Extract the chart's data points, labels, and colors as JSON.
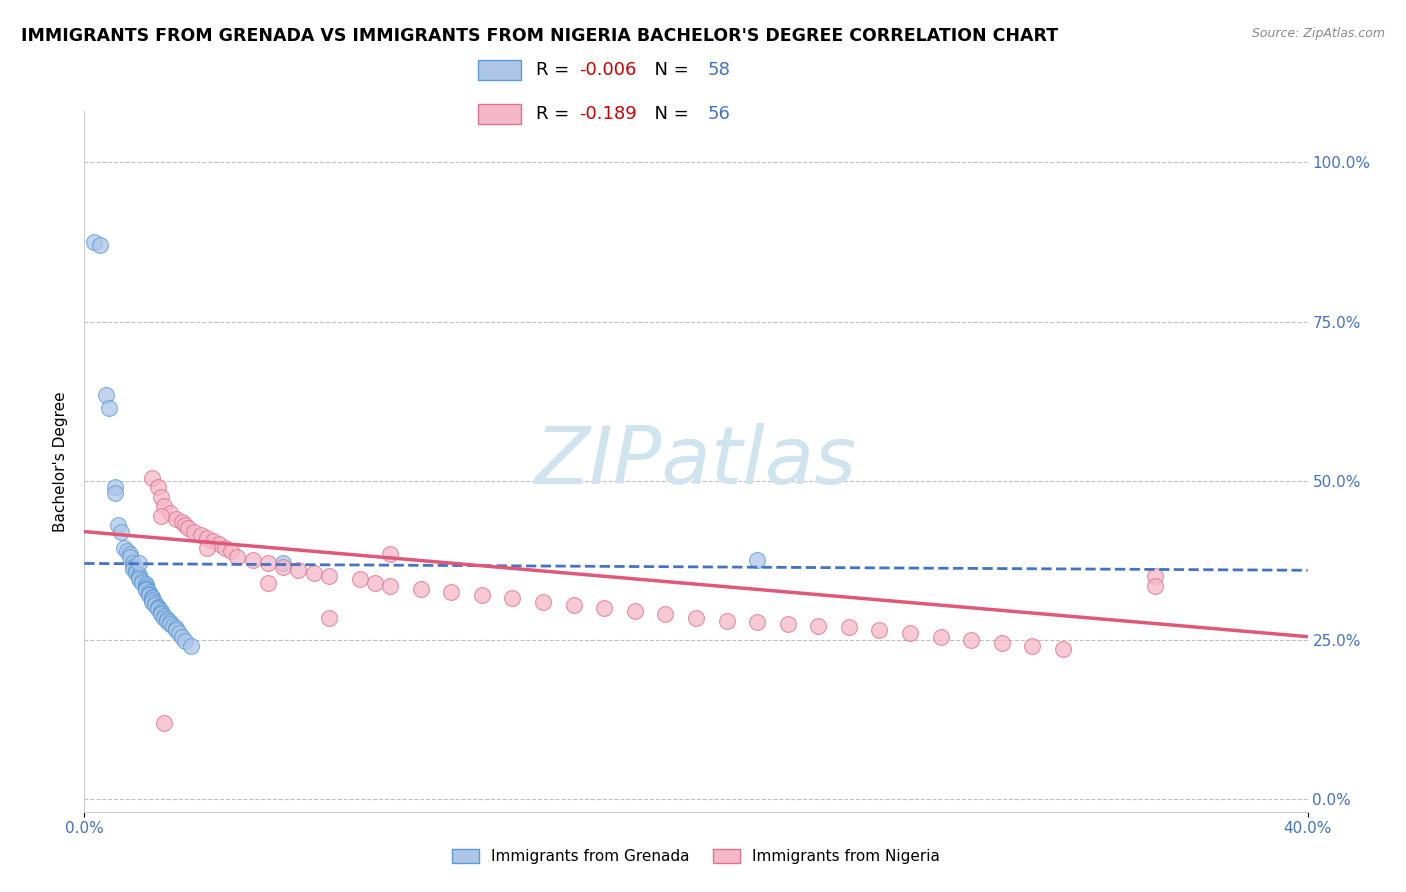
{
  "title": "IMMIGRANTS FROM GRENADA VS IMMIGRANTS FROM NIGERIA BACHELOR'S DEGREE CORRELATION CHART",
  "source": "Source: ZipAtlas.com",
  "ylabel": "Bachelor's Degree",
  "ytick_vals": [
    0.0,
    0.25,
    0.5,
    0.75,
    1.0
  ],
  "ytick_labels_right": [
    "0.0%",
    "25.0%",
    "50.0%",
    "75.0%",
    "100.0%"
  ],
  "xlim": [
    0.0,
    0.4
  ],
  "ylim": [
    -0.02,
    1.08
  ],
  "xtick_left": "0.0%",
  "xtick_right": "40.0%",
  "legend_grenada_R": "-0.006",
  "legend_grenada_N": "58",
  "legend_nigeria_R": "-0.189",
  "legend_nigeria_N": "56",
  "color_grenada_fill": "#adc6e8",
  "color_grenada_edge": "#5b9bd5",
  "color_nigeria_fill": "#f4b8c8",
  "color_nigeria_edge": "#e07090",
  "color_grenada_line": "#4472c4",
  "color_nigeria_line": "#e05878",
  "background_color": "#ffffff",
  "grid_color": "#c0c0c0",
  "title_fontsize": 12.5,
  "axis_label_fontsize": 11,
  "tick_fontsize": 11,
  "watermark_color": "#d0e4f0",
  "grenada_x": [
    0.003,
    0.005,
    0.007,
    0.008,
    0.01,
    0.01,
    0.011,
    0.012,
    0.013,
    0.014,
    0.015,
    0.015,
    0.016,
    0.016,
    0.016,
    0.017,
    0.017,
    0.018,
    0.018,
    0.018,
    0.019,
    0.019,
    0.02,
    0.02,
    0.02,
    0.02,
    0.02,
    0.021,
    0.021,
    0.021,
    0.022,
    0.022,
    0.022,
    0.022,
    0.023,
    0.023,
    0.024,
    0.024,
    0.024,
    0.025,
    0.025,
    0.025,
    0.026,
    0.026,
    0.027,
    0.027,
    0.028,
    0.028,
    0.029,
    0.03,
    0.03,
    0.031,
    0.032,
    0.033,
    0.035,
    0.018,
    0.065,
    0.22
  ],
  "grenada_y": [
    0.875,
    0.87,
    0.635,
    0.615,
    0.49,
    0.48,
    0.43,
    0.42,
    0.395,
    0.39,
    0.385,
    0.38,
    0.37,
    0.365,
    0.362,
    0.36,
    0.355,
    0.352,
    0.348,
    0.345,
    0.342,
    0.34,
    0.338,
    0.335,
    0.332,
    0.33,
    0.328,
    0.325,
    0.322,
    0.32,
    0.318,
    0.315,
    0.312,
    0.31,
    0.308,
    0.305,
    0.302,
    0.3,
    0.298,
    0.295,
    0.292,
    0.29,
    0.288,
    0.285,
    0.282,
    0.28,
    0.278,
    0.275,
    0.272,
    0.268,
    0.265,
    0.26,
    0.255,
    0.248,
    0.24,
    0.37,
    0.37,
    0.375
  ],
  "nigeria_x": [
    0.022,
    0.024,
    0.025,
    0.026,
    0.028,
    0.03,
    0.032,
    0.033,
    0.034,
    0.036,
    0.038,
    0.04,
    0.042,
    0.044,
    0.046,
    0.048,
    0.05,
    0.055,
    0.06,
    0.065,
    0.07,
    0.075,
    0.08,
    0.09,
    0.095,
    0.1,
    0.11,
    0.12,
    0.13,
    0.14,
    0.15,
    0.16,
    0.17,
    0.18,
    0.19,
    0.2,
    0.21,
    0.22,
    0.23,
    0.24,
    0.25,
    0.26,
    0.27,
    0.28,
    0.29,
    0.3,
    0.31,
    0.32,
    0.025,
    0.04,
    0.06,
    0.08,
    0.1,
    0.35,
    0.026,
    0.35
  ],
  "nigeria_y": [
    0.505,
    0.49,
    0.475,
    0.46,
    0.45,
    0.44,
    0.435,
    0.43,
    0.425,
    0.42,
    0.415,
    0.41,
    0.405,
    0.4,
    0.395,
    0.39,
    0.38,
    0.375,
    0.37,
    0.365,
    0.36,
    0.355,
    0.35,
    0.345,
    0.34,
    0.335,
    0.33,
    0.325,
    0.32,
    0.315,
    0.31,
    0.305,
    0.3,
    0.295,
    0.29,
    0.285,
    0.28,
    0.278,
    0.275,
    0.272,
    0.27,
    0.265,
    0.26,
    0.255,
    0.25,
    0.245,
    0.24,
    0.235,
    0.445,
    0.395,
    0.34,
    0.285,
    0.385,
    0.35,
    0.12,
    0.335
  ]
}
